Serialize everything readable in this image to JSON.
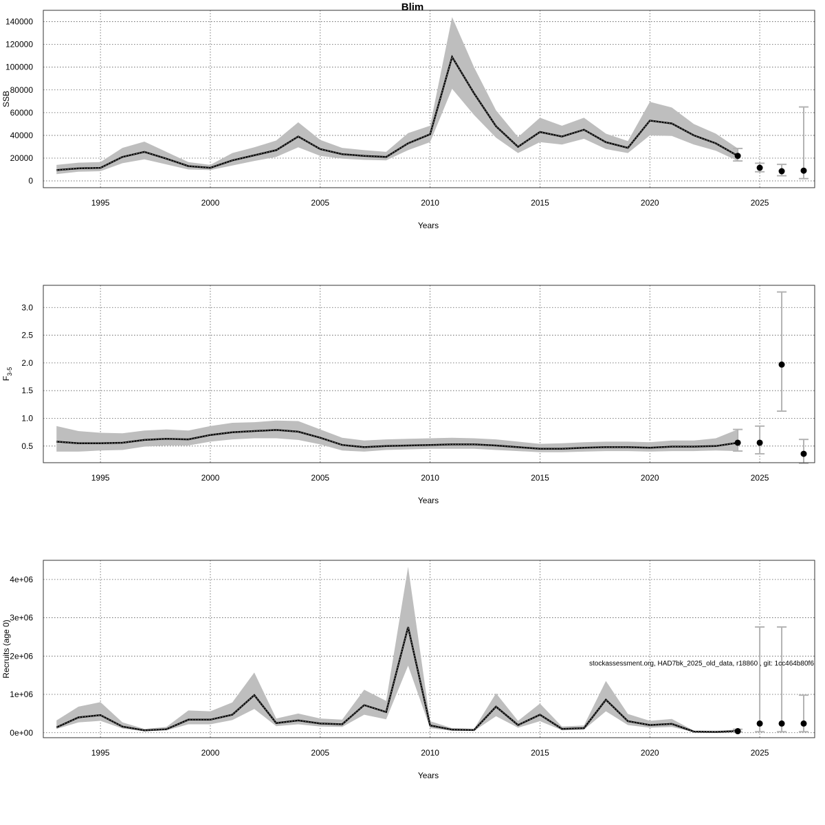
{
  "title": "Blim",
  "footnote": "stockassessment.org, HAD7bk_2025_old_data, r18860 , git: 1cc464b80f6",
  "colors": {
    "band": "#bebebe",
    "line": "#000000",
    "error_bar": "#b3b3b3",
    "grid": "#555555"
  },
  "chart_data": [
    {
      "type": "line",
      "ylabel": "SSB",
      "xlabel": "Years",
      "xlim": [
        1992.4,
        2027.5
      ],
      "ylim": [
        -6000,
        150000
      ],
      "xticks": [
        1995,
        2000,
        2005,
        2010,
        2015,
        2020,
        2025
      ],
      "yticks": [
        0,
        20000,
        40000,
        60000,
        80000,
        100000,
        120000,
        140000
      ],
      "ytick_labels": [
        "0",
        "20000",
        "40000",
        "60000",
        "80000",
        "100000",
        "120000",
        "140000"
      ],
      "grid": true,
      "x": [
        1993,
        1994,
        1995,
        1996,
        1997,
        1998,
        1999,
        2000,
        2001,
        2002,
        2003,
        2004,
        2005,
        2006,
        2007,
        2008,
        2009,
        2010,
        2011,
        2012,
        2013,
        2014,
        2015,
        2016,
        2017,
        2018,
        2019,
        2020,
        2021,
        2022,
        2023,
        2024
      ],
      "estimate": [
        9500,
        11000,
        11500,
        21000,
        25500,
        19500,
        13000,
        11500,
        18000,
        22500,
        27000,
        39000,
        28000,
        23500,
        22000,
        21000,
        33000,
        41000,
        109000,
        77000,
        48000,
        30000,
        43000,
        39000,
        45000,
        34000,
        29000,
        53000,
        50500,
        40000,
        33000,
        22000
      ],
      "lower": [
        6000,
        8000,
        8500,
        15500,
        19000,
        14500,
        10000,
        9500,
        13500,
        17500,
        21000,
        29500,
        22000,
        19500,
        18500,
        18000,
        27000,
        34000,
        81000,
        58000,
        38000,
        24500,
        34000,
        32000,
        37000,
        28000,
        24500,
        40000,
        39500,
        32000,
        26500,
        17500
      ],
      "upper": [
        14000,
        16000,
        16500,
        29000,
        34500,
        25500,
        16500,
        14000,
        24500,
        29500,
        35500,
        51500,
        36000,
        29000,
        27000,
        25500,
        42000,
        48500,
        144000,
        100000,
        62000,
        38500,
        55500,
        48500,
        55500,
        41500,
        35000,
        69500,
        64500,
        50000,
        41500,
        28500
      ],
      "forecast_points": [
        {
          "x": 2024,
          "y": 22000,
          "lo": 17500,
          "hi": 28500
        },
        {
          "x": 2025,
          "y": 11500,
          "lo": 8000,
          "hi": 15500
        },
        {
          "x": 2026,
          "y": 8500,
          "lo": 4500,
          "hi": 14500
        },
        {
          "x": 2027,
          "y": 9000,
          "lo": 2000,
          "hi": 65000
        }
      ]
    },
    {
      "type": "line",
      "ylabel": "F",
      "ylabel_sub": "3-5",
      "xlabel": "Years",
      "xlim": [
        1992.4,
        2027.5
      ],
      "ylim": [
        0.2,
        3.4
      ],
      "xticks": [
        1995,
        2000,
        2005,
        2010,
        2015,
        2020,
        2025
      ],
      "yticks": [
        0.5,
        1.0,
        1.5,
        2.0,
        2.5,
        3.0
      ],
      "ytick_labels": [
        "0.5",
        "1.0",
        "1.5",
        "2.0",
        "2.5",
        "3.0"
      ],
      "grid": true,
      "x": [
        1993,
        1994,
        1995,
        1996,
        1997,
        1998,
        1999,
        2000,
        2001,
        2002,
        2003,
        2004,
        2005,
        2006,
        2007,
        2008,
        2009,
        2010,
        2011,
        2012,
        2013,
        2014,
        2015,
        2016,
        2017,
        2018,
        2019,
        2020,
        2021,
        2022,
        2023,
        2024
      ],
      "estimate": [
        0.58,
        0.55,
        0.55,
        0.56,
        0.61,
        0.63,
        0.62,
        0.7,
        0.75,
        0.77,
        0.79,
        0.76,
        0.65,
        0.52,
        0.48,
        0.5,
        0.51,
        0.52,
        0.53,
        0.53,
        0.51,
        0.48,
        0.45,
        0.45,
        0.47,
        0.48,
        0.48,
        0.47,
        0.49,
        0.49,
        0.5,
        0.56
      ],
      "lower": [
        0.4,
        0.4,
        0.42,
        0.43,
        0.49,
        0.51,
        0.51,
        0.58,
        0.62,
        0.64,
        0.64,
        0.61,
        0.53,
        0.42,
        0.4,
        0.43,
        0.44,
        0.45,
        0.45,
        0.45,
        0.43,
        0.41,
        0.39,
        0.39,
        0.4,
        0.41,
        0.41,
        0.4,
        0.41,
        0.41,
        0.42,
        0.41
      ],
      "upper": [
        0.86,
        0.77,
        0.74,
        0.73,
        0.78,
        0.8,
        0.78,
        0.86,
        0.92,
        0.93,
        0.96,
        0.95,
        0.8,
        0.65,
        0.6,
        0.62,
        0.63,
        0.64,
        0.65,
        0.64,
        0.62,
        0.58,
        0.54,
        0.55,
        0.57,
        0.58,
        0.58,
        0.57,
        0.6,
        0.6,
        0.64,
        0.8
      ],
      "forecast_points": [
        {
          "x": 2024,
          "y": 0.56,
          "lo": 0.41,
          "hi": 0.8
        },
        {
          "x": 2025,
          "y": 0.56,
          "lo": 0.36,
          "hi": 0.86
        },
        {
          "x": 2026,
          "y": 1.97,
          "lo": 1.13,
          "hi": 3.28
        },
        {
          "x": 2027,
          "y": 0.36,
          "lo": 0.19,
          "hi": 0.62
        }
      ]
    },
    {
      "type": "line",
      "ylabel": "Recruits (age 0)",
      "xlabel": "Years",
      "xlim": [
        1992.4,
        2027.5
      ],
      "ylim": [
        -130000,
        4500000
      ],
      "xticks": [
        1995,
        2000,
        2005,
        2010,
        2015,
        2020,
        2025
      ],
      "yticks": [
        0,
        1000000,
        2000000,
        3000000,
        4000000
      ],
      "ytick_labels": [
        "0e+00",
        "1e+06",
        "2e+06",
        "3e+06",
        "4e+06"
      ],
      "grid": true,
      "x": [
        1993,
        1994,
        1995,
        1996,
        1997,
        1998,
        1999,
        2000,
        2001,
        2002,
        2003,
        2004,
        2005,
        2006,
        2007,
        2008,
        2009,
        2010,
        2011,
        2012,
        2013,
        2014,
        2015,
        2016,
        2017,
        2018,
        2019,
        2020,
        2021,
        2022,
        2023,
        2024
      ],
      "estimate": [
        140000,
        400000,
        460000,
        160000,
        60000,
        90000,
        340000,
        340000,
        470000,
        980000,
        250000,
        320000,
        240000,
        220000,
        720000,
        540000,
        2760000,
        190000,
        80000,
        70000,
        680000,
        200000,
        470000,
        100000,
        120000,
        860000,
        300000,
        200000,
        230000,
        30000,
        20000,
        40000
      ],
      "lower": [
        100000,
        270000,
        310000,
        110000,
        40000,
        60000,
        220000,
        220000,
        330000,
        620000,
        170000,
        220000,
        160000,
        150000,
        470000,
        350000,
        1750000,
        120000,
        50000,
        45000,
        430000,
        130000,
        300000,
        65000,
        80000,
        560000,
        200000,
        130000,
        150000,
        15000,
        10000,
        25000
      ],
      "upper": [
        320000,
        680000,
        800000,
        270000,
        100000,
        150000,
        580000,
        560000,
        790000,
        1570000,
        370000,
        500000,
        370000,
        340000,
        1120000,
        830000,
        4330000,
        300000,
        120000,
        100000,
        1030000,
        310000,
        760000,
        160000,
        190000,
        1350000,
        490000,
        310000,
        360000,
        55000,
        45000,
        85000
      ],
      "forecast_points": [
        {
          "x": 2024,
          "y": 40000,
          "lo": 20000,
          "hi": 90000
        },
        {
          "x": 2025,
          "y": 240000,
          "lo": 25000,
          "hi": 2760000
        },
        {
          "x": 2026,
          "y": 240000,
          "lo": 25000,
          "hi": 2760000
        },
        {
          "x": 2027,
          "y": 240000,
          "lo": 25000,
          "hi": 980000
        }
      ]
    }
  ]
}
